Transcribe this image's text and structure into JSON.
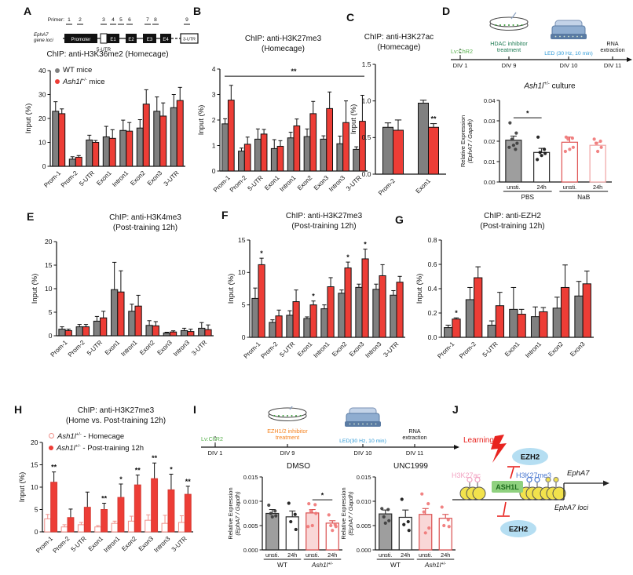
{
  "colors": {
    "wt_gray": "#808080",
    "ko_red": "#ed3d36",
    "pink_open_bar": "#f0908a",
    "led_blue": "#2f9ad6",
    "virus_green": "#56b04c",
    "hdac_green": "#1c7a52",
    "ezh_inhibitor_orange": "#f5821f",
    "h3k27ac_pink": "#f2a3c2",
    "h3k27me3_blue": "#4a78d0",
    "ezh2_bubble": "#b5def2",
    "ash1l_green": "#8fd17f",
    "nucleosome_yellow": "#f2e24c",
    "learning_red": "#e8231f"
  },
  "panels": {
    "A": {
      "label": "A"
    },
    "B": {
      "label": "B"
    },
    "C": {
      "label": "C"
    },
    "D": {
      "label": "D",
      "culture_it": "Ash1l",
      "culture_sup": "+/-",
      "culture_rest": " culture"
    },
    "E": {
      "label": "E"
    },
    "F": {
      "label": "F"
    },
    "G": {
      "label": "G"
    },
    "H": {
      "label": "H"
    },
    "I": {
      "label": "I"
    },
    "J": {
      "label": "J"
    }
  },
  "legends": {
    "A": [
      {
        "text": "WT mice"
      },
      {
        "it": "Ash1l",
        "sup": "+/-",
        "text": " mice"
      }
    ],
    "H": [
      {
        "it": "Ash1l",
        "sup": "+/-",
        "text": " - Homecage"
      },
      {
        "it": "Ash1l",
        "sup": "+/-",
        "text": " - Post-training 12h"
      }
    ]
  },
  "gene_diagram": {
    "primer_label": "Primer:",
    "numbers": [
      "1",
      "2",
      "3",
      "4",
      "5",
      "6",
      "7",
      "8",
      "9"
    ],
    "gene_line1": "EphA7",
    "gene_line2": "gene loci",
    "promoter": "Promoter",
    "utr5": "5-UTR",
    "exons": [
      "E1",
      "E2",
      "E3",
      "E4"
    ],
    "utr3": "3-UTR"
  },
  "timelines": {
    "D": {
      "virus": "Lv:ChR2",
      "treatment_l1": "HDAC inhibitor",
      "treatment_l2": "treatment",
      "treatment_color": "#1c7a52",
      "led": "LED (30 Hz, 10 min)",
      "rna_l1": "RNA",
      "rna_l2": "extraction",
      "divs": [
        "DIV 1",
        "DIV 9",
        "DIV 10",
        "DIV 11"
      ]
    },
    "I": {
      "virus": "Lv:ChR2",
      "treatment_l1": "EZH1/2 inhibitor",
      "treatment_l2": "treatment",
      "treatment_color": "#f5821f",
      "led": "LED(30 Hz, 10 min)",
      "rna_l1": "RNA",
      "rna_l2": "extraction",
      "divs": [
        "DIV 1",
        "DIV 9",
        "DIV 10",
        "DIV 11"
      ]
    }
  },
  "schematic": {
    "learning": "Learning",
    "ezh2": "EZH2",
    "h3k27ac": "H3K27ac",
    "h3k27me3": "H3K27me3",
    "ash1l": "ASH1L",
    "gene": "EphA7",
    "loci": "EphA7 loci"
  },
  "chart_data": [
    {
      "id": "A",
      "type": "grouped",
      "title": "ChIP: anti-H3K36me2 (Homecage)",
      "ylabel": "Input (%)",
      "ylim": [
        0,
        40
      ],
      "yticks": [
        "0",
        "10",
        "20",
        "30",
        "40"
      ],
      "categories": [
        "Prom-1",
        "Prom-2",
        "5-UTR",
        "Exon1",
        "Intron1",
        "Exon2",
        "Exon3",
        "3-UTR"
      ],
      "series": [
        {
          "name": "WT mice",
          "fill": "#808080",
          "stroke": "#111111",
          "values": [
            23,
            3,
            11,
            12.3,
            15,
            16,
            23,
            24.5
          ],
          "errors": [
            4,
            1,
            2,
            4.4,
            4.3,
            3.5,
            6,
            5.5
          ]
        },
        {
          "name": "Ash1l+/- mice",
          "fill": "#ed3d36",
          "stroke": "#111111",
          "values": [
            22,
            3.8,
            10,
            11.7,
            14.7,
            26,
            21,
            27.5
          ],
          "errors": [
            2,
            0.7,
            0.8,
            3.6,
            3.6,
            6,
            5.5,
            5.5
          ]
        }
      ],
      "legend_position": "top-left"
    },
    {
      "id": "B",
      "type": "grouped",
      "title": "ChIP: anti-H3K27me3\n(Homecage)",
      "ylabel": "Input (%)",
      "ylim": [
        0,
        4
      ],
      "yticks": [
        "0",
        "1",
        "2",
        "3",
        "4"
      ],
      "categories": [
        "Prom-1",
        "Prom-2",
        "5-UTR",
        "Exon1",
        "Intron1",
        "Exon2",
        "Exon3",
        "Intron3",
        "3-UTR"
      ],
      "series": [
        {
          "name": "WT mice",
          "fill": "#808080",
          "stroke": "#111111",
          "values": [
            1.85,
            0.78,
            1.25,
            0.88,
            1.3,
            1.35,
            1.25,
            1.07,
            0.85
          ],
          "errors": [
            0.2,
            0.12,
            0.4,
            0.35,
            0.22,
            0.3,
            0.13,
            0.3,
            0.1
          ]
        },
        {
          "name": "Ash1l+/- mice",
          "fill": "#ed3d36",
          "stroke": "#111111",
          "values": [
            2.78,
            1.05,
            1.45,
            0.97,
            1.77,
            2.25,
            2.45,
            1.9,
            1.95
          ],
          "errors": [
            0.58,
            0.28,
            0.18,
            0.22,
            0.27,
            0.48,
            0.65,
            0.85,
            1.02
          ]
        }
      ],
      "sigline": {
        "y": 3.72,
        "label": "**"
      }
    },
    {
      "id": "C",
      "type": "grouped",
      "title": "ChIP: anti-H3K27ac\n(Homecage)",
      "ylabel": "Input (%)",
      "ylim": [
        0,
        1.5
      ],
      "yticks": [
        "0.0",
        "0.5",
        "1.0",
        "1.5"
      ],
      "categories": [
        "Prom-2",
        "Exon1"
      ],
      "series": [
        {
          "name": "WT mice",
          "fill": "#808080",
          "stroke": "#111111",
          "values": [
            0.64,
            0.97
          ],
          "errors": [
            0.06,
            0.04
          ]
        },
        {
          "name": "Ash1l+/- mice",
          "fill": "#ed3d36",
          "stroke": "#111111",
          "values": [
            0.6,
            0.64
          ],
          "errors": [
            0.14,
            0.05
          ]
        }
      ],
      "sig": [
        "",
        "**"
      ]
    },
    {
      "id": "D",
      "type": "bars",
      "title": "Ash1l+/- culture",
      "ylabel_lines": [
        {
          "text": "Relative Expression",
          "italic": false
        },
        {
          "text": "(EphA7 / Gapdh)",
          "italic": true
        }
      ],
      "ylim": [
        0,
        0.04
      ],
      "yticks": [
        "0.00",
        "0.01",
        "0.02",
        "0.03",
        "0.04"
      ],
      "bars": [
        {
          "label": "unsti.",
          "value": 0.0205,
          "err": 0.002,
          "fill": "#9e9e9e",
          "stroke": "#2b2b2b",
          "dot_color": "#3a3a3a",
          "dots": [
            0.029,
            0.024,
            0.021,
            0.019,
            0.018,
            0.017,
            0.016
          ]
        },
        {
          "label": "24h",
          "value": 0.0145,
          "err": 0.002,
          "fill": "#ffffff",
          "stroke": "#2b2b2b",
          "dot_color": "#111111",
          "dots": [
            0.022,
            0.016,
            0.0145,
            0.014,
            0.013,
            0.011
          ]
        },
        {
          "label": "unsti.",
          "value": 0.0195,
          "err": 0.0025,
          "fill": "#ffffff",
          "stroke": "#e05353",
          "dot_color": "#f07575",
          "dots": [
            0.022,
            0.0215,
            0.021,
            0.017,
            0.016,
            0.015
          ]
        },
        {
          "label": "24h",
          "value": 0.018,
          "err": 0.0015,
          "fill": "#ffffff",
          "stroke": "#f0a3a3",
          "dot_color": "#f07575",
          "dots": [
            0.021,
            0.02,
            0.019,
            0.017,
            0.015
          ]
        }
      ],
      "groups": [
        {
          "text": "PBS",
          "from": 0,
          "to": 1
        },
        {
          "it": "NaB",
          "plain": true,
          "text": "NaB",
          "from": 2,
          "to": 3
        }
      ],
      "sigbracket": {
        "from": 0,
        "to": 1,
        "y": 0.0315,
        "label": "*"
      }
    },
    {
      "id": "E",
      "type": "grouped",
      "title": "ChIP: anti-H3K4me3\n(Post-training 12h)",
      "ylabel": "Input (%)",
      "ylim": [
        0,
        20
      ],
      "yticks": [
        "0",
        "5",
        "10",
        "15",
        "20"
      ],
      "categories": [
        "Prom-1",
        "Prom-2",
        "5-UTR",
        "Exon1",
        "Intron1",
        "Exon2",
        "Exon3",
        "Intron3",
        "3-UTR"
      ],
      "series": [
        {
          "name": "WT mice",
          "fill": "#808080",
          "stroke": "#111111",
          "values": [
            1.4,
            1.9,
            3.1,
            9.8,
            5.2,
            2.2,
            0.6,
            1.1,
            1.6
          ],
          "errors": [
            0.5,
            0.5,
            1.0,
            5.8,
            1.5,
            1.0,
            0.15,
            0.5,
            1.2
          ]
        },
        {
          "name": "Ash1l+/- mice",
          "fill": "#ed3d36",
          "stroke": "#111111",
          "values": [
            1.1,
            1.9,
            3.8,
            9.3,
            6.3,
            2.1,
            0.8,
            0.9,
            1.3
          ],
          "errors": [
            0.3,
            0.5,
            1.4,
            4.5,
            2.3,
            0.9,
            0.25,
            0.5,
            1.0
          ]
        }
      ]
    },
    {
      "id": "F",
      "type": "grouped",
      "title": "ChIP: anti-H3K27me3\n(Post-training 12h)",
      "ylabel": "Input (%)",
      "ylim": [
        0,
        15
      ],
      "yticks": [
        "0",
        "5",
        "10",
        "15"
      ],
      "categories": [
        "Prom-1",
        "Prom-2",
        "5-UTR",
        "Exon1",
        "Intron1",
        "Exon2",
        "Exon3",
        "Intron3",
        "3-UTR"
      ],
      "series": [
        {
          "name": "WT mice",
          "fill": "#808080",
          "stroke": "#111111",
          "values": [
            6.0,
            2.3,
            3.4,
            2.9,
            4.4,
            6.8,
            7.7,
            7.4,
            6.5
          ],
          "errors": [
            1.6,
            0.4,
            0.7,
            0.25,
            0.6,
            0.5,
            0.5,
            0.8,
            0.7
          ]
        },
        {
          "name": "Ash1l+/- mice",
          "fill": "#ed3d36",
          "stroke": "#111111",
          "values": [
            11.2,
            3.3,
            5.5,
            5.0,
            7.8,
            10.7,
            12.1,
            9.5,
            8.5
          ],
          "errors": [
            1.0,
            0.9,
            1.8,
            0.6,
            1.4,
            0.9,
            1.5,
            1.7,
            0.9
          ]
        }
      ],
      "sig": [
        "*",
        "",
        "",
        "*",
        "",
        "*",
        "*",
        "",
        ""
      ]
    },
    {
      "id": "G",
      "type": "grouped",
      "title": "ChIP: anti-EZH2\n(Post-training 12h)",
      "ylabel": "Input (%)",
      "ylim": [
        0,
        0.8
      ],
      "yticks": [
        "0.0",
        "0.2",
        "0.4",
        "0.6",
        "0.8"
      ],
      "categories": [
        "Prom-1",
        "Prom-2",
        "5-UTR",
        "Exon1",
        "Intron1",
        "Exon2",
        "Exon3"
      ],
      "series": [
        {
          "name": "WT mice",
          "fill": "#808080",
          "stroke": "#111111",
          "values": [
            0.08,
            0.31,
            0.1,
            0.23,
            0.17,
            0.24,
            0.34
          ],
          "errors": [
            0.02,
            0.1,
            0.035,
            0.18,
            0.08,
            0.09,
            0.12
          ]
        },
        {
          "name": "Ash1l+/- mice",
          "fill": "#ed3d36",
          "stroke": "#111111",
          "values": [
            0.15,
            0.49,
            0.26,
            0.19,
            0.21,
            0.41,
            0.44
          ],
          "errors": [
            0.01,
            0.09,
            0.11,
            0.04,
            0.035,
            0.185,
            0.105
          ]
        }
      ],
      "sig": [
        "*",
        "",
        "",
        "",
        "",
        "",
        ""
      ]
    },
    {
      "id": "H",
      "type": "grouped",
      "title": "ChIP: anti-H3K27me3\n(Home vs. Post-training 12h)",
      "ylabel": "Input (%)",
      "ylim": [
        0,
        20
      ],
      "yticks": [
        "0",
        "5",
        "10",
        "15",
        "20"
      ],
      "categories": [
        "Prom-1",
        "Prom-2",
        "5-UTR",
        "Exon1",
        "Intron1",
        "Exon2",
        "Exon3",
        "Intron3",
        "3-UTR"
      ],
      "series": [
        {
          "name": "Ash1l+/- - Homecage",
          "fill": "#ffffff",
          "stroke": "#f0908a",
          "err_color": "#f0908a",
          "values": [
            2.9,
            1.1,
            1.6,
            1.1,
            1.9,
            2.4,
            2.6,
            1.9,
            2.1
          ],
          "errors": [
            1.0,
            0.5,
            0.5,
            0.3,
            0.5,
            1.1,
            1.2,
            1.8,
            1.5
          ]
        },
        {
          "name": "Ash1l+/- - Post-training 12h",
          "fill": "#ed3d36",
          "stroke": "#d43a33",
          "err_color": "#111111",
          "values": [
            11.1,
            3.2,
            5.5,
            5.0,
            7.7,
            10.5,
            11.9,
            9.4,
            8.4
          ],
          "errors": [
            2.3,
            1.9,
            3.4,
            1.4,
            3.0,
            2.2,
            3.5,
            3.5,
            1.8
          ]
        }
      ],
      "sig": [
        "**",
        "",
        "",
        "**",
        "*",
        "**",
        "**",
        "*",
        "**"
      ]
    },
    {
      "id": "I1",
      "type": "bars",
      "title": "DMSO",
      "ylabel_lines": [
        {
          "text": "Relative Expression",
          "italic": false
        },
        {
          "text": "(EphA7 / Gapdh)",
          "italic": true
        }
      ],
      "ylim": [
        0,
        0.015
      ],
      "yticks": [
        "0.000",
        "0.005",
        "0.010",
        "0.015"
      ],
      "bars": [
        {
          "label": "unsti.",
          "value": 0.0075,
          "err": 0.0008,
          "fill": "#9e9e9e",
          "stroke": "#2b2b2b",
          "dot_color": "#3a3a3a",
          "dots": [
            0.0092,
            0.008,
            0.0075,
            0.007,
            0.0068
          ]
        },
        {
          "label": "24h",
          "value": 0.0068,
          "err": 0.0012,
          "fill": "#ffffff",
          "stroke": "#2b2b2b",
          "dot_color": "#111111",
          "dots": [
            0.0096,
            0.0073,
            0.0058,
            0.0042
          ]
        },
        {
          "label": "unsti.",
          "value": 0.0076,
          "err": 0.0007,
          "fill": "#f9d7d7",
          "stroke": "#d94f4f",
          "dot_color": "#f07575",
          "dots": [
            0.0095,
            0.0093,
            0.008,
            0.0075,
            0.005,
            0.0048
          ]
        },
        {
          "label": "24h",
          "value": 0.0055,
          "err": 0.0005,
          "fill": "#ffffff",
          "stroke": "#d94f4f",
          "dot_color": "#f07575",
          "dots": [
            0.0072,
            0.0052,
            0.005,
            0.0048,
            0.004
          ]
        }
      ],
      "groups": [
        {
          "text": "WT",
          "from": 0,
          "to": 1
        },
        {
          "it": "Ash1l",
          "sup": "+/-",
          "from": 2,
          "to": 3
        }
      ],
      "sigbracket": {
        "from": 2,
        "to": 3,
        "y": 0.0103,
        "label": "*"
      }
    },
    {
      "id": "I2",
      "type": "bars",
      "title": "UNC1999",
      "ylabel_lines": [
        {
          "text": "Relative Expression",
          "italic": false
        },
        {
          "text": "(EphA7 / Gapdh)",
          "italic": true
        }
      ],
      "ylim": [
        0,
        0.015
      ],
      "yticks": [
        "0.000",
        "0.005",
        "0.010",
        "0.015"
      ],
      "bars": [
        {
          "label": "unsti.",
          "value": 0.0074,
          "err": 0.0008,
          "fill": "#9e9e9e",
          "stroke": "#2b2b2b",
          "dot_color": "#3a3a3a",
          "dots": [
            0.0085,
            0.0083,
            0.0068,
            0.006,
            0.0055
          ]
        },
        {
          "label": "24h",
          "value": 0.0067,
          "err": 0.0015,
          "fill": "#ffffff",
          "stroke": "#2b2b2b",
          "dot_color": "#111111",
          "dots": [
            0.0104,
            0.0058,
            0.0052,
            0.004
          ]
        },
        {
          "label": "unsti.",
          "value": 0.0073,
          "err": 0.0012,
          "fill": "#f9d7d7",
          "stroke": "#d94f4f",
          "dot_color": "#f07575",
          "dots": [
            0.0115,
            0.0095,
            0.0078,
            0.0045,
            0.0035
          ]
        },
        {
          "label": "24h",
          "value": 0.0065,
          "err": 0.0008,
          "fill": "#ffffff",
          "stroke": "#d94f4f",
          "dot_color": "#f07575",
          "dots": [
            0.0088,
            0.0062,
            0.005,
            0.0048
          ]
        }
      ],
      "groups": [
        {
          "text": "WT",
          "from": 0,
          "to": 1
        },
        {
          "it": "Ash1l",
          "sup": "+/-",
          "from": 2,
          "to": 3
        }
      ]
    }
  ]
}
